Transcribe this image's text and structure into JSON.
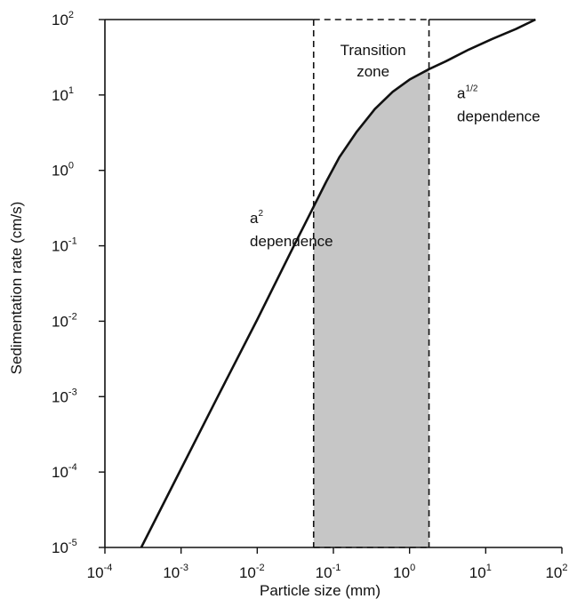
{
  "chart_data": {
    "type": "line",
    "title": "",
    "xlabel": "Particle size (mm)",
    "ylabel": "Sedimentation rate (cm/s)",
    "xscale": "log",
    "yscale": "log",
    "xlim": [
      0.0001,
      100
    ],
    "ylim": [
      1e-05,
      100
    ],
    "grid": false,
    "x_ticks": [
      {
        "base": "10",
        "exp": "-4",
        "value": 0.0001
      },
      {
        "base": "10",
        "exp": "-3",
        "value": 0.001
      },
      {
        "base": "10",
        "exp": "-2",
        "value": 0.01
      },
      {
        "base": "10",
        "exp": "-1",
        "value": 0.1
      },
      {
        "base": "10",
        "exp": "0",
        "value": 1
      },
      {
        "base": "10",
        "exp": "1",
        "value": 10
      },
      {
        "base": "10",
        "exp": "2",
        "value": 100
      }
    ],
    "y_ticks": [
      {
        "base": "10",
        "exp": "-5",
        "value": 1e-05
      },
      {
        "base": "10",
        "exp": "-4",
        "value": 0.0001
      },
      {
        "base": "10",
        "exp": "-3",
        "value": 0.001
      },
      {
        "base": "10",
        "exp": "-2",
        "value": 0.01
      },
      {
        "base": "10",
        "exp": "-1",
        "value": 0.1
      },
      {
        "base": "10",
        "exp": "0",
        "value": 1
      },
      {
        "base": "10",
        "exp": "1",
        "value": 10
      },
      {
        "base": "10",
        "exp": "2",
        "value": 100
      }
    ],
    "series": [
      {
        "color": "#111111",
        "points": [
          [
            0.0003,
            1e-05
          ],
          [
            0.001,
            0.00011
          ],
          [
            0.003,
            0.00098
          ],
          [
            0.01,
            0.0105
          ],
          [
            0.03,
            0.098
          ],
          [
            0.055,
            0.33
          ],
          [
            0.08,
            0.7
          ],
          [
            0.12,
            1.5
          ],
          [
            0.2,
            3.2
          ],
          [
            0.35,
            6.5
          ],
          [
            0.6,
            11
          ],
          [
            1.0,
            16
          ],
          [
            1.8,
            22
          ],
          [
            3,
            28
          ],
          [
            6,
            40
          ],
          [
            12,
            55
          ],
          [
            25,
            75
          ],
          [
            45,
            100
          ]
        ]
      }
    ],
    "transition_zone": {
      "x_range": [
        0.055,
        1.8
      ],
      "fill": "#c6c6c6",
      "label_line1": "Transition",
      "label_line2": "zone"
    },
    "annotations": [
      {
        "base": "a",
        "sup": "2",
        "text": "dependence",
        "x": 0.008,
        "y": 0.2
      },
      {
        "base": "a",
        "sup": "1/2",
        "text": "dependence",
        "x": 4.2,
        "y": 9
      }
    ]
  }
}
